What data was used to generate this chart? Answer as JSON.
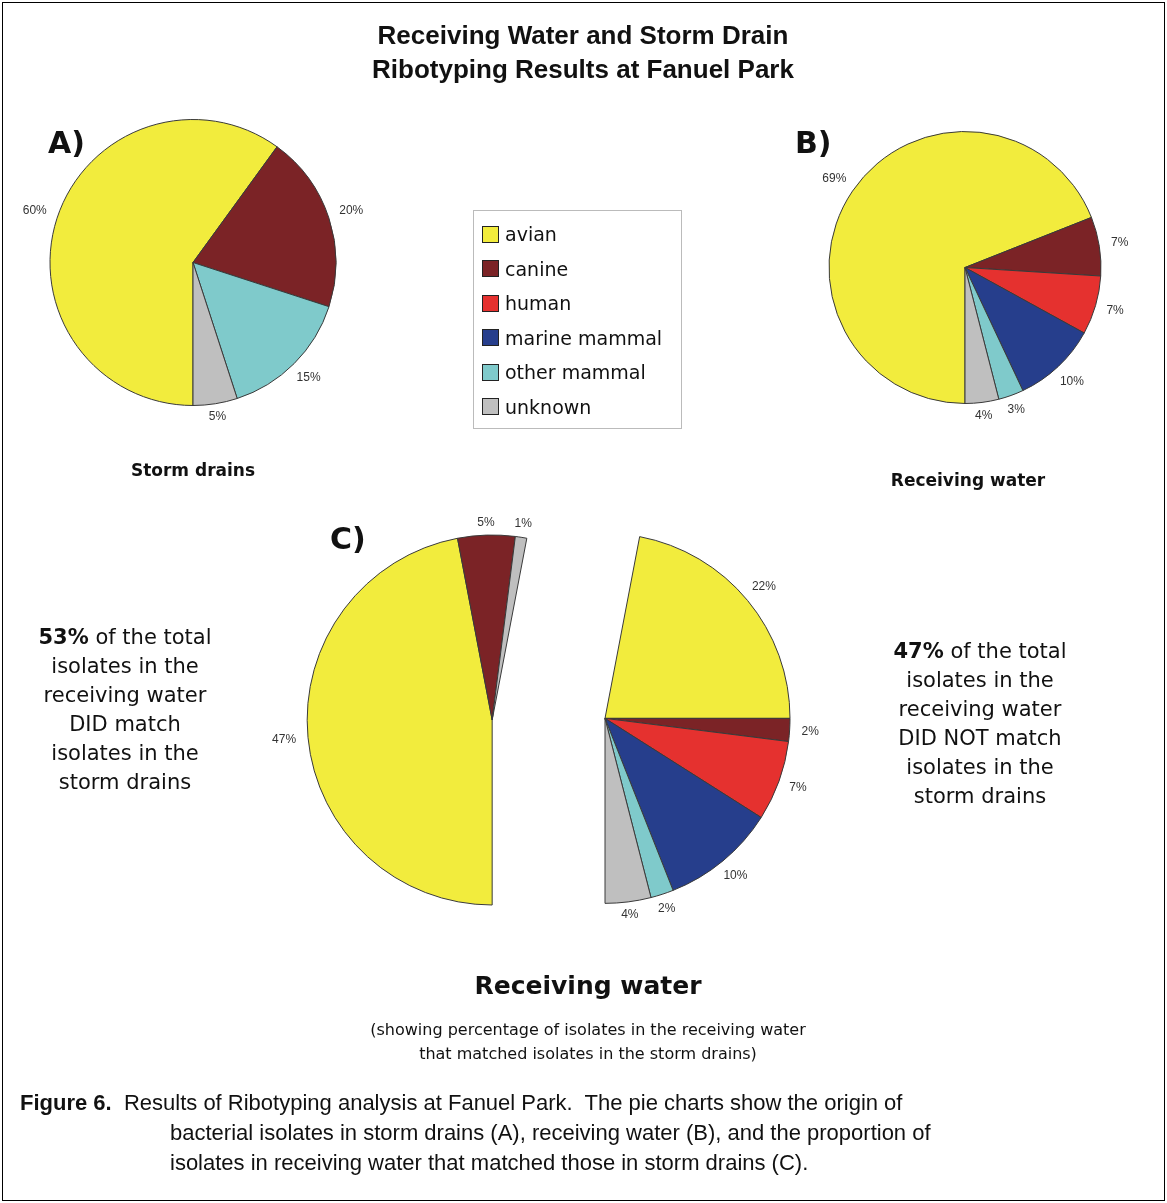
{
  "chart_data": [
    {
      "type": "pie",
      "title": "Receiving Water and Storm Drain\nRibotyping Results at Fanuel Park",
      "annotations": [
        "A)",
        "Storm drains"
      ],
      "categories": [
        null,
        null,
        null,
        null
      ],
      "values": [
        60,
        20,
        15,
        5
      ],
      "colors": [
        "#f2ec3d",
        "#7b2326",
        "#7fcacb",
        "#bfbfbf"
      ],
      "value_labels": [
        "60%",
        "20%",
        "15%",
        "5%"
      ]
    },
    {
      "type": "pie",
      "annotations": [
        "B)",
        "Receiving water"
      ],
      "legend": "left",
      "categories": [
        "avian",
        "canine",
        "human",
        "marine mammal",
        "other mammal",
        "unknown"
      ],
      "values": [
        69,
        7,
        7,
        10,
        3,
        4
      ],
      "colors": [
        "#f2ec3d",
        "#7b2326",
        "#e5312f",
        "#263e8c",
        "#7fcacb",
        "#bfbfbf"
      ],
      "value_labels": [
        "69%",
        "7%",
        "7%",
        "10%",
        "3%",
        "4%"
      ]
    },
    {
      "type": "pie",
      "title": "Receiving water",
      "subtitle": "(showing percentage of isolates in the receiving water\nthat matched isolates in the storm drains)",
      "annotations": [
        "C)",
        "53% of the total\nisolates in the\nreceiving water\nDID match\nisolates in the\nstorm drains",
        "47% of the total\nisolates in the\nreceiving water\nDID NOT match\nisolates in the\nstorm drains",
        "Figure 6.  Results of Ribotyping analysis at Fanuel Park.  The pie charts show the origin of\nbacterial isolates in storm drains (A), receiving water (B), and the proportion of\nisolates in receiving water that matched those in storm drains (C)."
      ],
      "series": [
        {
          "values": [
            47,
            5,
            1
          ],
          "colors": [
            "#f2ec3d",
            "#7b2326",
            "#bfbfbf"
          ],
          "value_labels": [
            "47%",
            "5%",
            "1%"
          ]
        },
        {
          "values": [
            22,
            2,
            7,
            10,
            2,
            4
          ],
          "colors": [
            "#f2ec3d",
            "#7b2326",
            "#e5312f",
            "#263e8c",
            "#7fcacb",
            "#bfbfbf"
          ],
          "value_labels": [
            "22%",
            "2%",
            "7%",
            "10%",
            "2%",
            "4%"
          ]
        }
      ]
    }
  ]
}
